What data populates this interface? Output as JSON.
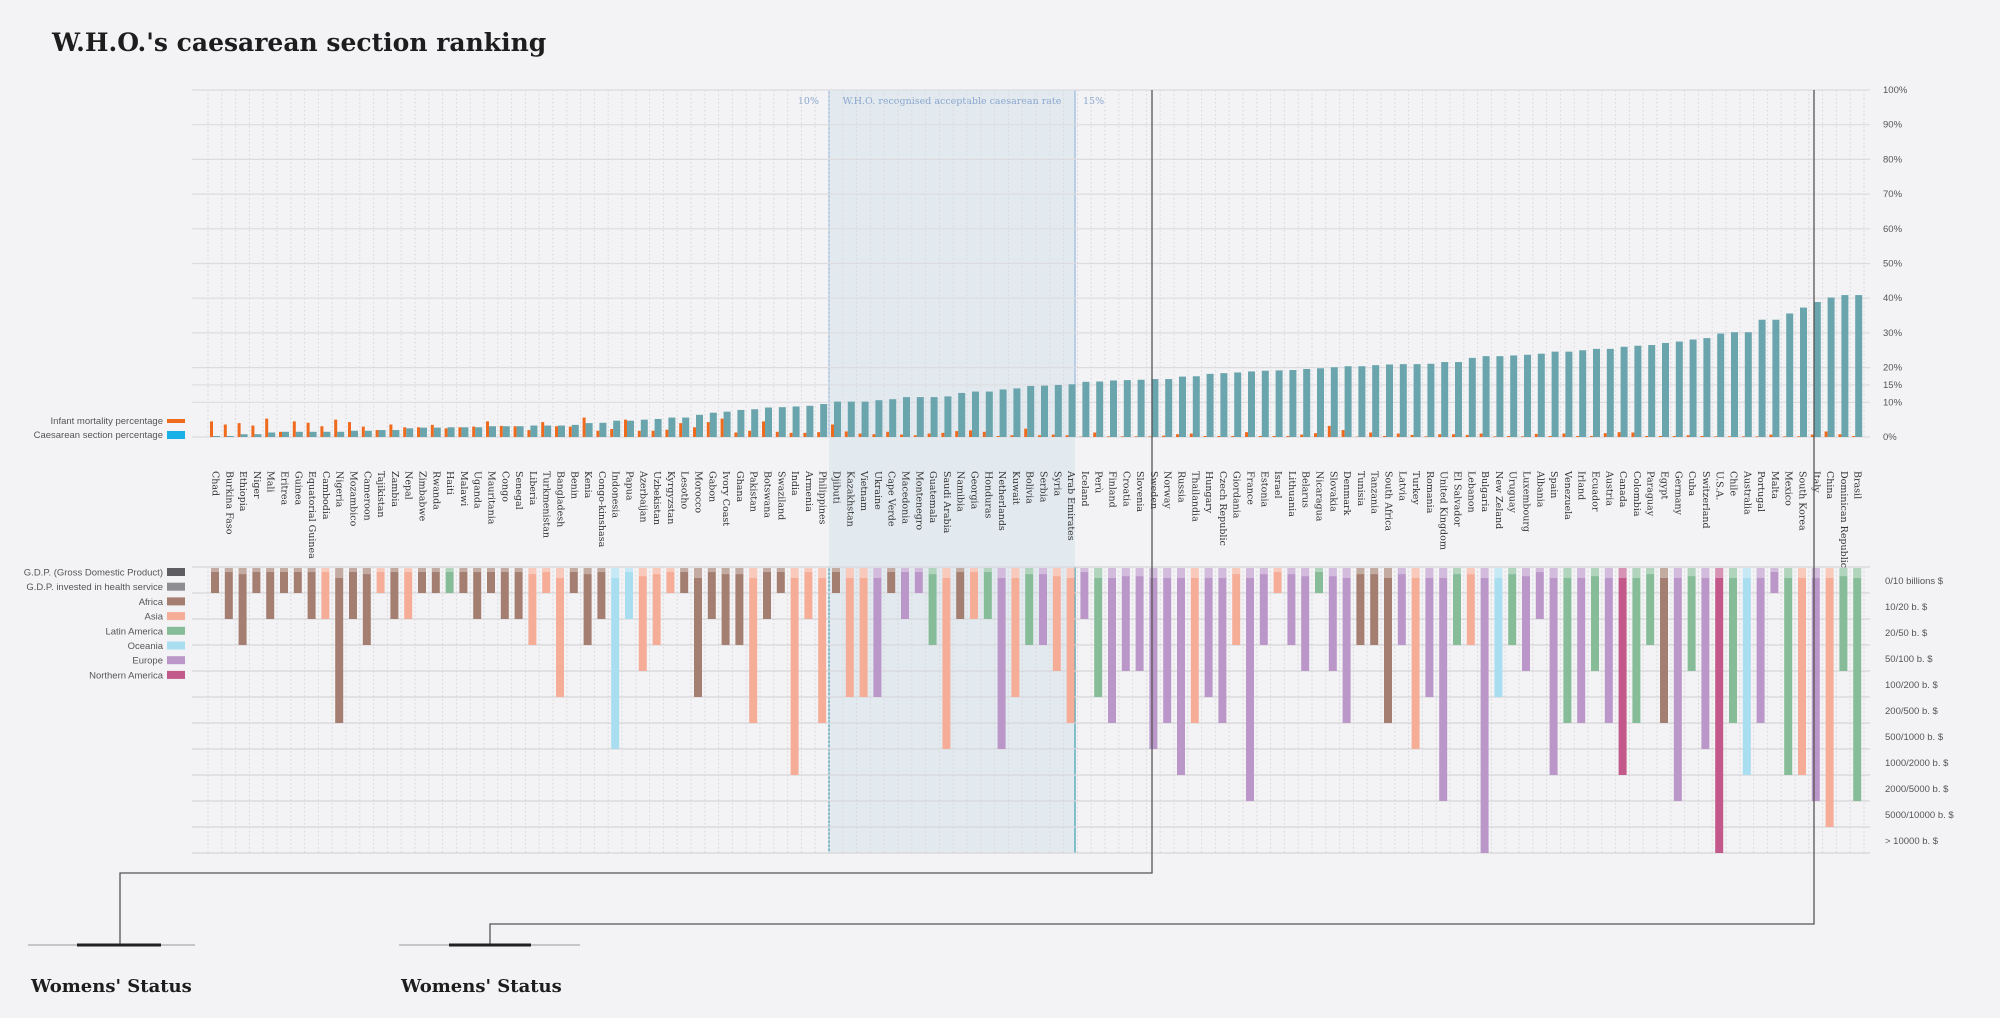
{
  "chart_data": {
    "type": "bar",
    "title": "W.H.O.'s caesarean section ranking",
    "ylabel": "",
    "ylim": [
      0,
      100
    ],
    "y_tick_values": [
      0,
      10,
      15,
      20,
      30,
      40,
      50,
      60,
      70,
      80,
      90,
      100
    ],
    "y_tick_labels": [
      "0%",
      "10%",
      "15%",
      "20%",
      "30%",
      "40%",
      "50%",
      "60%",
      "70%",
      "80%",
      "90%",
      "100%"
    ],
    "legend_top": [
      {
        "label": "Infant mortality percentage",
        "color": "#f06a1e"
      },
      {
        "label": "Caesarean section percentage",
        "color": "#1ab0e8"
      }
    ],
    "who_band": {
      "label": "W.H.O. recognised acceptable caesarean rate",
      "low": 10,
      "high": 15,
      "low_label": "10%",
      "high_label": "15%"
    },
    "countries": [
      "Chad",
      "Burkina Faso",
      "Ethiopia",
      "Niger",
      "Mali",
      "Eritrea",
      "Guinea",
      "Equatorial Guinea",
      "Cambodia",
      "Nigeria",
      "Mozambico",
      "Cameroon",
      "Tajikistan",
      "Zambia",
      "Nepal",
      "Zimbabwe",
      "Rwanda",
      "Haiti",
      "Malawi",
      "Uganda",
      "Mauritania",
      "Congo",
      "Senegal",
      "Liberia",
      "Turkmenistan",
      "Bangladesh",
      "Benin",
      "Kenia",
      "Congo-kinshasa",
      "Indonesia",
      "Papua",
      "Azerbaijan",
      "Uzbekistan",
      "Kyrgyzstan",
      "Lesotho",
      "Morocco",
      "Gabon",
      "Ivory Coast",
      "Ghana",
      "Pakistan",
      "Botswana",
      "Swaziland",
      "India",
      "Armenia",
      "Philippines",
      "Djibuti",
      "Kazakhstan",
      "Vietnam",
      "Ukraine",
      "Cape Verde",
      "Macedonia",
      "Montenegro",
      "Guatemala",
      "Saudi Arabia",
      "Namibia",
      "Georgia",
      "Honduras",
      "Netherlands",
      "Kuwait",
      "Bolivia",
      "Serbia",
      "Syria",
      "Arab Emirates",
      "Iceland",
      "Perù",
      "Finland",
      "Croatia",
      "Slovenia",
      "Sweden",
      "Norway",
      "Russia",
      "Thailandia",
      "Hungary",
      "Czech Republic",
      "Giordania",
      "France",
      "Estonia",
      "Israel",
      "Lithuania",
      "Belarus",
      "Nicaragua",
      "Slovakia",
      "Denmark",
      "Tunisia",
      "Tanzania",
      "South Africa",
      "Latvia",
      "Turkey",
      "Romania",
      "United Kingdom",
      "El Salvador",
      "Lebanon",
      "Bulgaria",
      "New Zeland",
      "Uruguay",
      "Luxembourg",
      "Albania",
      "Spain",
      "Venezuela",
      "Irland",
      "Ecuador",
      "Austria",
      "Canada",
      "Colombia",
      "Paraguay",
      "Egypt",
      "Germany",
      "Cuba",
      "Switzerland",
      "U.S.A.",
      "Chile",
      "Australia",
      "Portugal",
      "Malta",
      "Mexico",
      "South Korea",
      "Italy",
      "China",
      "Dominican Republic",
      "Brasil"
    ],
    "highlighted": [
      "Sweden",
      "Italy"
    ],
    "caesarean": [
      0.3,
      0.3,
      0.8,
      0.8,
      1.3,
      1.5,
      1.5,
      1.5,
      1.5,
      1.5,
      1.8,
      1.8,
      2,
      2,
      2.5,
      2.7,
      2.7,
      2.8,
      2.8,
      2.8,
      3.1,
      3.1,
      3.1,
      3.3,
      3.3,
      3.3,
      3.5,
      4,
      4.1,
      4.7,
      4.7,
      5,
      5.2,
      5.6,
      5.6,
      6.4,
      7,
      7.3,
      7.8,
      8,
      8.5,
      8.6,
      8.8,
      9.0,
      9.5,
      10.2,
      10.2,
      10.2,
      10.6,
      10.9,
      11.5,
      11.5,
      11.5,
      11.7,
      12.7,
      13.1,
      13.1,
      13.7,
      14,
      14.7,
      14.8,
      15,
      15.2,
      15.9,
      16,
      16.3,
      16.4,
      16.5,
      16.7,
      16.7,
      17.4,
      17.5,
      18.2,
      18.4,
      18.6,
      18.9,
      19.1,
      19.2,
      19.3,
      19.6,
      19.8,
      20.1,
      20.4,
      20.4,
      20.7,
      20.9,
      21,
      21,
      21.1,
      21.6,
      21.6,
      22.8,
      23.3,
      23.3,
      23.5,
      23.7,
      24,
      24.6,
      24.6,
      25,
      25.4,
      25.4,
      26,
      26.3,
      26.5,
      27.1,
      27.5,
      28.1,
      28.5,
      29.8,
      30.2,
      30.2,
      33.8,
      33.8,
      35.6,
      37.3,
      38.9,
      40.2,
      40.9,
      40.9
    ],
    "infant_mortality": [
      4.5,
      3.6,
      4,
      3.3,
      5.3,
      1.5,
      4.5,
      4.1,
      3.1,
      5,
      4.3,
      3,
      2,
      3.6,
      2.8,
      2.8,
      3.5,
      2.5,
      2.8,
      3,
      4.5,
      3.2,
      3.1,
      2,
      4.3,
      3.1,
      3,
      5.6,
      1.8,
      2.3,
      5,
      1.8,
      1.8,
      2.1,
      4,
      2.8,
      4.3,
      5.3,
      1.3,
      1.8,
      4.5,
      1.5,
      1.2,
      1.2,
      1.4,
      3.6,
      1.6,
      1.0,
      0.8,
      1.5,
      0.7,
      0.5,
      1.0,
      1.2,
      1.7,
      1.9,
      1.5,
      0.3,
      0.5,
      2.4,
      0.5,
      0.7,
      0.5,
      0.1,
      1.3,
      0.2,
      0.2,
      0.2,
      0.2,
      0.4,
      0.8,
      1.0,
      0.3,
      0.3,
      0.3,
      1.4,
      0.3,
      0.3,
      0.3,
      0.7,
      1.1,
      3.2,
      2.0,
      0.1,
      1.3,
      0.3,
      1.0,
      0.6,
      0.2,
      0.8,
      0.8,
      0.6,
      1.0,
      0.2,
      0.3,
      0.2,
      0.9,
      0.3,
      1.0,
      0.3,
      0.3,
      1.1,
      1.4,
      1.3,
      0.3,
      0.3,
      0.3,
      0.5,
      0.3,
      0.2,
      0.2,
      0.2,
      0.2,
      0.7,
      0.2,
      0.2,
      0.7,
      1.6,
      0.8,
      0.3
    ],
    "gdp_categories": [
      "0/10 billions $",
      "10/20 b. $",
      "20/50 b. $",
      "50/100 b. $",
      "100/200 b. $",
      "200/500 b. $",
      "500/1000 b. $",
      "1000/2000 b. $",
      "2000/5000 b. $",
      "5000/10000 b. $",
      "> 10000 b. $"
    ],
    "gdp_level": [
      1,
      2,
      3,
      1,
      2,
      1,
      1,
      2,
      2,
      6,
      2,
      3,
      1,
      2,
      2,
      1,
      1,
      1,
      1,
      2,
      1,
      2,
      2,
      3,
      1,
      5,
      1,
      3,
      2,
      7,
      2,
      4,
      3,
      1,
      1,
      5,
      2,
      3,
      3,
      6,
      2,
      1,
      8,
      2,
      6,
      1,
      5,
      5,
      5,
      1,
      2,
      1,
      3,
      7,
      2,
      2,
      2,
      7,
      5,
      3,
      3,
      4,
      6,
      2,
      5,
      6,
      4,
      4,
      7,
      6,
      8,
      6,
      5,
      6,
      3,
      9,
      3,
      1,
      3,
      4,
      1,
      4,
      6,
      3,
      3,
      6,
      3,
      7,
      5,
      9,
      3,
      3,
      11,
      5,
      3,
      4,
      2,
      8,
      6,
      6,
      4,
      6,
      8,
      6,
      3,
      6,
      9,
      4,
      7,
      11,
      6,
      8,
      6,
      1,
      8,
      8,
      9,
      10,
      4,
      9
    ],
    "region_index": [
      0,
      0,
      0,
      0,
      0,
      0,
      0,
      0,
      1,
      0,
      0,
      0,
      1,
      0,
      1,
      0,
      0,
      2,
      0,
      0,
      0,
      0,
      0,
      1,
      1,
      1,
      0,
      0,
      0,
      3,
      3,
      1,
      1,
      1,
      0,
      0,
      0,
      0,
      0,
      1,
      0,
      0,
      1,
      1,
      1,
      0,
      1,
      1,
      4,
      0,
      4,
      4,
      2,
      1,
      0,
      1,
      2,
      4,
      1,
      2,
      4,
      1,
      1,
      4,
      2,
      4,
      4,
      4,
      4,
      4,
      4,
      1,
      4,
      4,
      1,
      4,
      4,
      1,
      4,
      4,
      2,
      4,
      4,
      0,
      0,
      0,
      4,
      1,
      4,
      4,
      2,
      1,
      4,
      3,
      2,
      4,
      4,
      4,
      2,
      4,
      2,
      4,
      5,
      2,
      2,
      0,
      4,
      2,
      4,
      5,
      2,
      3,
      4,
      4,
      2,
      1,
      4,
      1,
      2,
      2
    ],
    "legend_bottom": [
      {
        "label": "G.D.P. (Gross Domestic Product)",
        "color": "#5e5e62"
      },
      {
        "label": "G.D.P. invested in health service",
        "color": "#8e8e92"
      },
      {
        "label": "Africa",
        "color": "#a47e70"
      },
      {
        "label": "Asia",
        "color": "#f6ad98"
      },
      {
        "label": "Latin America",
        "color": "#86bd98"
      },
      {
        "label": "Oceania",
        "color": "#a8def0"
      },
      {
        "label": "Europe",
        "color": "#bb97c9"
      },
      {
        "label": "Northern America",
        "color": "#c2598a"
      }
    ],
    "colors": {
      "caesarean_bar": "#6aa5ad",
      "infant_bar": "#f06a1e",
      "highlight": "#e8463c"
    }
  },
  "annotations": {
    "womens_status_1": "Womens' Status",
    "womens_status_2": "Womens' Status"
  }
}
